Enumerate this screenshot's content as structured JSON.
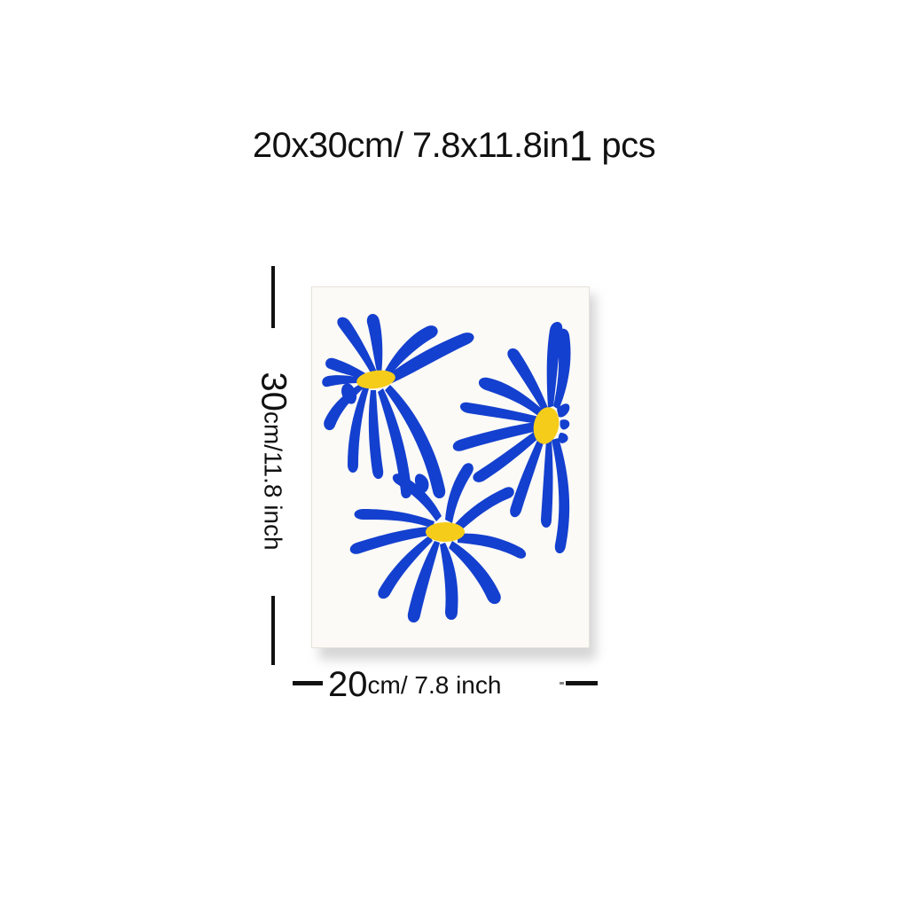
{
  "headline": {
    "size_part": "20x30cm/ 7.8x11.8in",
    "quantity_number": "1",
    "quantity_unit": " pcs"
  },
  "height_dimension": {
    "number": "30",
    "unit_text": "cm/11.8 inch"
  },
  "width_dimension": {
    "number": "20",
    "unit_text": "cm/ 7.8 inch"
  },
  "artwork": {
    "description": "blue abstract daisy flowers with yellow centers",
    "petal_color": "#1440cf",
    "center_color": "#f6cc1a",
    "paper_color": "#fcfaf6"
  }
}
